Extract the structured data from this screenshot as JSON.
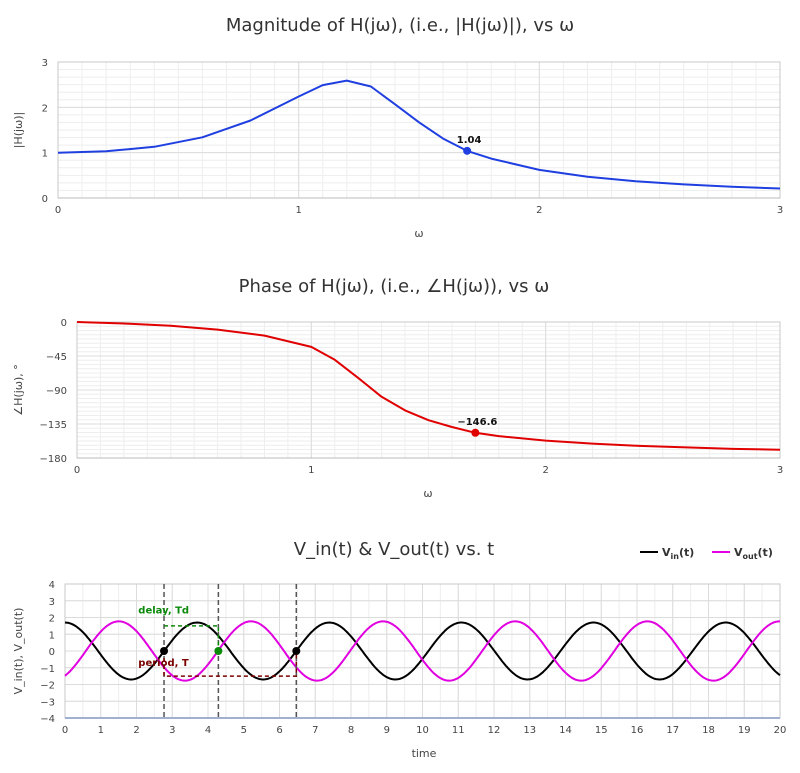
{
  "chart_data": [
    {
      "id": "magnitude",
      "type": "line",
      "title": "Magnitude of H(jω), (i.e., |H(jω)|), vs ω",
      "xlabel": "ω",
      "ylabel": "|H(jω)|",
      "xlim": [
        0,
        3
      ],
      "ylim": [
        0,
        3
      ],
      "xticks": [
        "0",
        "1",
        "2",
        "3"
      ],
      "yticks": [
        "0",
        "1",
        "2",
        "3"
      ],
      "grid": true,
      "series": [
        {
          "color": "#1f3fe0",
          "x": [
            0,
            0.2,
            0.4,
            0.6,
            0.8,
            1.0,
            1.1,
            1.2,
            1.3,
            1.4,
            1.5,
            1.6,
            1.7,
            1.8,
            2.0,
            2.2,
            2.4,
            2.6,
            2.8,
            3.0
          ],
          "y": [
            1.0,
            1.03,
            1.13,
            1.34,
            1.71,
            2.24,
            2.49,
            2.59,
            2.46,
            2.07,
            1.67,
            1.31,
            1.04,
            0.87,
            0.62,
            0.47,
            0.37,
            0.3,
            0.25,
            0.21
          ]
        }
      ],
      "marker": {
        "x": 1.7,
        "y": 1.04,
        "label": "1.04",
        "color": "#1f3fe0"
      }
    },
    {
      "id": "phase",
      "type": "line",
      "title": "Phase of H(jω), (i.e., ∠H(jω)), vs ω",
      "xlabel": "ω",
      "ylabel": "∠H(jω), °",
      "xlim": [
        0,
        3
      ],
      "ylim": [
        -180,
        0
      ],
      "xticks": [
        "0",
        "1",
        "2",
        "3"
      ],
      "yticks": [
        "0",
        "−45",
        "−90",
        "−135",
        "−180"
      ],
      "grid": true,
      "series": [
        {
          "color": "#e00000",
          "x": [
            0,
            0.2,
            0.4,
            0.6,
            0.8,
            1.0,
            1.1,
            1.2,
            1.3,
            1.4,
            1.5,
            1.6,
            1.7,
            1.8,
            2.0,
            2.2,
            2.4,
            2.6,
            2.8,
            3.0
          ],
          "y": [
            0,
            -2,
            -5,
            -10,
            -18,
            -33,
            -50,
            -74,
            -99,
            -117,
            -130,
            -139,
            -146.6,
            -151,
            -157,
            -161,
            -164,
            -166,
            -168,
            -169
          ]
        }
      ],
      "marker": {
        "x": 1.7,
        "y": -146.6,
        "label": "−146.6",
        "color": "#e00000"
      }
    },
    {
      "id": "time",
      "type": "line",
      "title": "V_in(t) & V_out(t) vs. t",
      "xlabel": "time",
      "ylabel": "V_in(t), V_out(t)",
      "xlim": [
        0,
        20
      ],
      "ylim": [
        -4,
        4
      ],
      "xticks": [
        "0",
        "1",
        "2",
        "3",
        "4",
        "5",
        "6",
        "7",
        "8",
        "9",
        "10",
        "11",
        "12",
        "13",
        "14",
        "15",
        "16",
        "17",
        "18",
        "19",
        "20"
      ],
      "yticks": [
        "4",
        "3",
        "2",
        "1",
        "0",
        "−1",
        "−2",
        "−3",
        "−4"
      ],
      "grid": true,
      "legend_position": "top-right",
      "series": [
        {
          "name": "Vin(t)",
          "color": "#000000",
          "amplitude": 1.7,
          "omega": 1.7,
          "phase_deg": 90
        },
        {
          "name": "Vout(t)",
          "color": "#e000e0",
          "amplitude": 1.77,
          "omega": 1.7,
          "phase_deg": -56.6
        }
      ],
      "annotations": {
        "delay_label": "delay, Td",
        "delay_color": "#0a8a0a",
        "period_label": "period, T",
        "period_color": "#7a0000",
        "vlines": [
          2.77,
          4.29,
          6.47
        ],
        "points": [
          {
            "x": 2.77,
            "y": 0,
            "color": "#000000"
          },
          {
            "x": 4.29,
            "y": 0,
            "color": "#0a8a0a"
          },
          {
            "x": 6.47,
            "y": 0,
            "color": "#000000"
          }
        ],
        "delay_y": 1.5,
        "period_y": -1.5
      }
    }
  ],
  "legend": {
    "vin_main": "V",
    "vin_sub": "in",
    "vin_tail": "(t)",
    "vout_main": "V",
    "vout_sub": "out",
    "vout_tail": "(t)"
  }
}
